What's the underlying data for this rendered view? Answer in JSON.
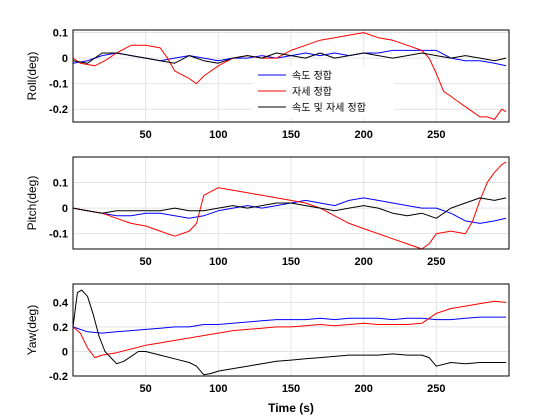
{
  "colors": {
    "blue": "#0000ff",
    "red": "#ff0000",
    "black": "#000000"
  },
  "legend": {
    "placement": "inside-center-bottom of first chart",
    "entries": [
      {
        "label": "속도 정합",
        "color": "#0000ff"
      },
      {
        "label": "자세 정합",
        "color": "#ff0000"
      },
      {
        "label": "속도 및 자세 정합",
        "color": "#000000"
      }
    ]
  },
  "chart_data": [
    {
      "type": "line",
      "ylabel": "Roll(deg)",
      "xlabel": "",
      "xlim": [
        0,
        300
      ],
      "ylim": [
        -0.25,
        0.11
      ],
      "xticks": [
        50,
        100,
        150,
        200,
        250
      ],
      "yticks": [
        0.1,
        0,
        -0.1,
        -0.2
      ],
      "ytick_labels": [
        "0.1",
        "0",
        "-0.1",
        "-0.2"
      ],
      "grid": true,
      "series": [
        {
          "name": "속도 정합",
          "color": "#0000ff",
          "x": [
            0,
            10,
            20,
            30,
            40,
            50,
            60,
            70,
            80,
            90,
            100,
            110,
            120,
            130,
            140,
            150,
            160,
            170,
            180,
            190,
            200,
            210,
            220,
            230,
            240,
            250,
            260,
            270,
            280,
            290,
            298
          ],
          "y": [
            -0.02,
            -0.01,
            0.01,
            0.02,
            0.01,
            0.0,
            -0.01,
            0.0,
            0.01,
            0.0,
            -0.01,
            0.0,
            0.0,
            0.01,
            0.0,
            0.01,
            0.02,
            0.01,
            0.02,
            0.01,
            0.02,
            0.02,
            0.03,
            0.03,
            0.03,
            0.03,
            0.0,
            -0.01,
            -0.01,
            -0.02,
            -0.03
          ]
        },
        {
          "name": "자세 정합",
          "color": "#ff0000",
          "x": [
            0,
            5,
            15,
            22,
            30,
            40,
            50,
            60,
            65,
            70,
            80,
            85,
            90,
            100,
            110,
            120,
            130,
            140,
            150,
            160,
            170,
            180,
            190,
            200,
            210,
            220,
            230,
            240,
            245,
            250,
            255,
            260,
            265,
            270,
            275,
            280,
            285,
            290,
            295,
            298
          ],
          "y": [
            0.0,
            -0.02,
            -0.03,
            -0.01,
            0.02,
            0.05,
            0.05,
            0.04,
            0.0,
            -0.05,
            -0.08,
            -0.1,
            -0.07,
            -0.03,
            0.0,
            0.01,
            0.0,
            0.0,
            0.03,
            0.05,
            0.07,
            0.08,
            0.09,
            0.1,
            0.08,
            0.07,
            0.05,
            0.03,
            0.0,
            -0.06,
            -0.13,
            -0.15,
            -0.17,
            -0.19,
            -0.21,
            -0.23,
            -0.23,
            -0.24,
            -0.2,
            -0.21
          ]
        },
        {
          "name": "속도 및 자세 정합",
          "color": "#000000",
          "x": [
            0,
            10,
            20,
            30,
            40,
            50,
            60,
            70,
            80,
            90,
            100,
            110,
            120,
            130,
            140,
            150,
            160,
            170,
            180,
            190,
            200,
            210,
            220,
            230,
            240,
            250,
            260,
            270,
            280,
            290,
            298
          ],
          "y": [
            -0.01,
            -0.02,
            0.02,
            0.02,
            0.01,
            0.0,
            -0.01,
            -0.02,
            0.01,
            -0.01,
            -0.02,
            0.0,
            0.01,
            0.0,
            0.02,
            0.01,
            0.0,
            0.02,
            0.0,
            0.01,
            0.02,
            0.01,
            0.0,
            0.01,
            0.02,
            0.01,
            0.0,
            0.01,
            0.0,
            -0.01,
            0.0
          ]
        }
      ]
    },
    {
      "type": "line",
      "ylabel": "Pitch(deg)",
      "xlabel": "",
      "xlim": [
        0,
        300
      ],
      "ylim": [
        -0.16,
        0.2
      ],
      "xticks": [
        50,
        100,
        150,
        200,
        250
      ],
      "yticks": [
        0.1,
        0,
        -0.1
      ],
      "ytick_labels": [
        "0.1",
        "0",
        "-0.1"
      ],
      "grid": true,
      "series": [
        {
          "name": "속도 정합",
          "color": "#0000ff",
          "x": [
            0,
            10,
            20,
            30,
            40,
            50,
            60,
            70,
            80,
            90,
            100,
            110,
            120,
            130,
            140,
            150,
            160,
            170,
            180,
            190,
            200,
            210,
            220,
            230,
            240,
            250,
            260,
            270,
            280,
            290,
            298
          ],
          "y": [
            0.0,
            -0.01,
            -0.02,
            -0.03,
            -0.03,
            -0.02,
            -0.02,
            -0.03,
            -0.04,
            -0.03,
            -0.01,
            0.0,
            0.01,
            0.0,
            0.01,
            0.02,
            0.03,
            0.02,
            0.01,
            0.03,
            0.04,
            0.03,
            0.02,
            0.01,
            0.0,
            0.0,
            -0.02,
            -0.05,
            -0.06,
            -0.05,
            -0.04
          ]
        },
        {
          "name": "자세 정합",
          "color": "#ff0000",
          "x": [
            0,
            10,
            20,
            30,
            40,
            50,
            60,
            70,
            80,
            85,
            90,
            100,
            110,
            120,
            130,
            140,
            150,
            160,
            170,
            180,
            190,
            200,
            210,
            220,
            230,
            240,
            245,
            250,
            260,
            270,
            275,
            280,
            285,
            290,
            295,
            298
          ],
          "y": [
            0.0,
            -0.01,
            -0.02,
            -0.04,
            -0.06,
            -0.07,
            -0.09,
            -0.11,
            -0.09,
            -0.06,
            0.05,
            0.08,
            0.07,
            0.06,
            0.05,
            0.04,
            0.03,
            0.02,
            0.0,
            -0.03,
            -0.06,
            -0.08,
            -0.1,
            -0.12,
            -0.14,
            -0.16,
            -0.14,
            -0.1,
            -0.09,
            -0.1,
            -0.05,
            0.03,
            0.1,
            0.14,
            0.17,
            0.18
          ]
        },
        {
          "name": "속도 및 자세 정합",
          "color": "#000000",
          "x": [
            0,
            10,
            20,
            30,
            40,
            50,
            60,
            70,
            80,
            90,
            100,
            110,
            120,
            130,
            140,
            150,
            160,
            170,
            180,
            190,
            200,
            210,
            220,
            230,
            240,
            250,
            260,
            270,
            280,
            290,
            298
          ],
          "y": [
            0.0,
            -0.01,
            -0.02,
            -0.01,
            -0.01,
            -0.01,
            -0.01,
            0.0,
            -0.01,
            -0.01,
            0.0,
            0.01,
            0.0,
            0.01,
            0.02,
            0.02,
            0.01,
            0.0,
            -0.01,
            0.0,
            0.01,
            0.0,
            -0.02,
            -0.03,
            -0.02,
            -0.04,
            0.0,
            0.02,
            0.04,
            0.03,
            0.04
          ]
        }
      ]
    },
    {
      "type": "line",
      "ylabel": "Yaw(deg)",
      "xlabel": "Time (s)",
      "xlim": [
        0,
        300
      ],
      "ylim": [
        -0.2,
        0.55
      ],
      "xticks": [
        50,
        100,
        150,
        200,
        250
      ],
      "yticks": [
        0.4,
        0.2,
        0,
        -0.2
      ],
      "ytick_labels": [
        "0.4",
        "0.2",
        "0",
        "-0.2"
      ],
      "grid": true,
      "series": [
        {
          "name": "속도 정합",
          "color": "#0000ff",
          "x": [
            0,
            10,
            20,
            30,
            40,
            50,
            60,
            70,
            80,
            90,
            100,
            110,
            120,
            130,
            140,
            150,
            160,
            170,
            180,
            190,
            200,
            210,
            220,
            230,
            240,
            250,
            260,
            270,
            280,
            290,
            298
          ],
          "y": [
            0.2,
            0.16,
            0.15,
            0.16,
            0.17,
            0.18,
            0.19,
            0.2,
            0.2,
            0.22,
            0.22,
            0.23,
            0.24,
            0.25,
            0.26,
            0.26,
            0.26,
            0.27,
            0.26,
            0.27,
            0.27,
            0.27,
            0.26,
            0.27,
            0.27,
            0.26,
            0.26,
            0.27,
            0.28,
            0.28,
            0.28
          ]
        },
        {
          "name": "자세 정합",
          "color": "#ff0000",
          "x": [
            0,
            5,
            10,
            15,
            20,
            30,
            40,
            50,
            60,
            70,
            80,
            90,
            100,
            110,
            120,
            130,
            140,
            150,
            160,
            170,
            180,
            190,
            200,
            210,
            220,
            230,
            240,
            245,
            250,
            260,
            270,
            280,
            290,
            298
          ],
          "y": [
            0.2,
            0.15,
            0.03,
            -0.05,
            -0.03,
            -0.01,
            0.02,
            0.05,
            0.07,
            0.09,
            0.11,
            0.13,
            0.15,
            0.17,
            0.18,
            0.19,
            0.2,
            0.2,
            0.21,
            0.22,
            0.21,
            0.22,
            0.23,
            0.22,
            0.22,
            0.22,
            0.23,
            0.27,
            0.31,
            0.35,
            0.37,
            0.39,
            0.41,
            0.4
          ]
        },
        {
          "name": "속도 및 자세 정합",
          "color": "#000000",
          "x": [
            0,
            3,
            6,
            10,
            14,
            18,
            22,
            26,
            30,
            35,
            40,
            45,
            50,
            60,
            70,
            80,
            85,
            90,
            95,
            100,
            110,
            120,
            130,
            140,
            150,
            160,
            170,
            180,
            190,
            200,
            210,
            220,
            230,
            240,
            245,
            250,
            260,
            270,
            280,
            290,
            298
          ],
          "y": [
            0.2,
            0.48,
            0.5,
            0.45,
            0.3,
            0.12,
            0.0,
            -0.05,
            -0.1,
            -0.08,
            -0.04,
            0.0,
            0.0,
            -0.03,
            -0.06,
            -0.09,
            -0.12,
            -0.19,
            -0.18,
            -0.16,
            -0.14,
            -0.12,
            -0.1,
            -0.08,
            -0.07,
            -0.06,
            -0.05,
            -0.04,
            -0.03,
            -0.03,
            -0.03,
            -0.02,
            -0.03,
            -0.03,
            -0.05,
            -0.12,
            -0.09,
            -0.1,
            -0.09,
            -0.09,
            -0.09
          ]
        }
      ]
    }
  ]
}
